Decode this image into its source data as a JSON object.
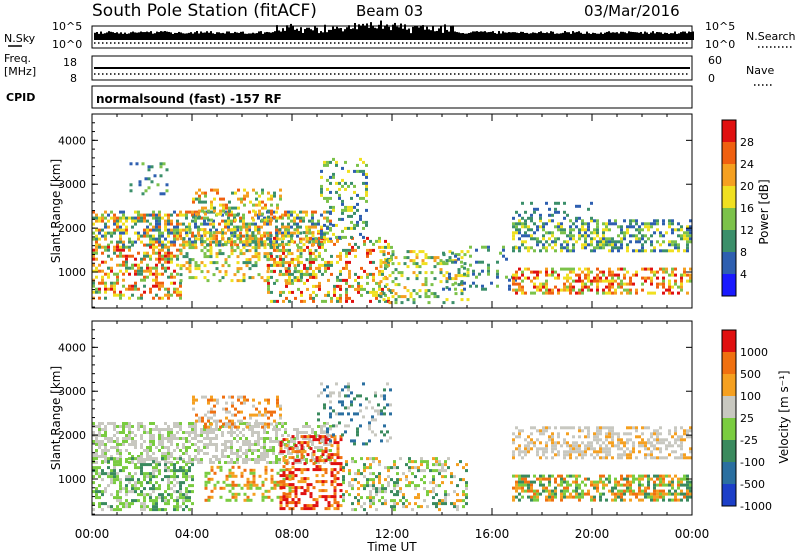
{
  "header": {
    "station": "South Pole Station (fitACF)",
    "beam": "Beam 03",
    "date": "03/Mar/2016"
  },
  "top_panels": {
    "nsky_label": "N.Sky",
    "nsky_ticks": [
      "10^5",
      "10^0"
    ],
    "nsearch_label": "N.Search",
    "nsearch_ticks": [
      "10^5",
      "10^0"
    ],
    "freq_label": "Freq.",
    "freq_unit": "[MHz]",
    "freq_ticks": [
      "18",
      "8"
    ],
    "nave_label": "Nave",
    "nave_ticks": [
      "60",
      "0"
    ],
    "cpid_label": "CPID",
    "cpid_text": "normalsound (fast) -157 RF"
  },
  "chart_data": [
    {
      "type": "heatmap",
      "name": "power-panel",
      "ylabel": "Slant Range [km]",
      "yticks": [
        "1000",
        "2000",
        "3000",
        "4000"
      ],
      "ylim": [
        180,
        4600
      ],
      "xlim": [
        "00:00",
        "24:00"
      ],
      "colorbar": {
        "label": "Power [dB]",
        "ticks": [
          "4",
          "8",
          "12",
          "16",
          "20",
          "24",
          "28"
        ],
        "colors": [
          "#1a1aff",
          "#2e5fb0",
          "#3b8f6a",
          "#7cc24a",
          "#f0e020",
          "#f5a020",
          "#f06010",
          "#e01010"
        ]
      },
      "grid": false
    },
    {
      "type": "heatmap",
      "name": "velocity-panel",
      "ylabel": "Slant Range [km]",
      "yticks": [
        "1000",
        "2000",
        "3000",
        "4000"
      ],
      "ylim": [
        180,
        4600
      ],
      "xlim": [
        "00:00",
        "24:00"
      ],
      "colorbar": {
        "label": "Velocity [m s⁻¹]",
        "ticks": [
          "1000",
          "500",
          "100",
          "25",
          "-25",
          "-100",
          "-500",
          "-1000"
        ],
        "colors": [
          "#1c3fc8",
          "#2a6fa0",
          "#3a8a5e",
          "#7acc40",
          "#c8c8c0",
          "#f5a020",
          "#f07010",
          "#e01010"
        ]
      },
      "grid": false
    }
  ],
  "x_axis": {
    "ticks": [
      "00:00",
      "04:00",
      "08:00",
      "12:00",
      "16:00",
      "20:00",
      "00:00"
    ],
    "label": "Time UT"
  }
}
